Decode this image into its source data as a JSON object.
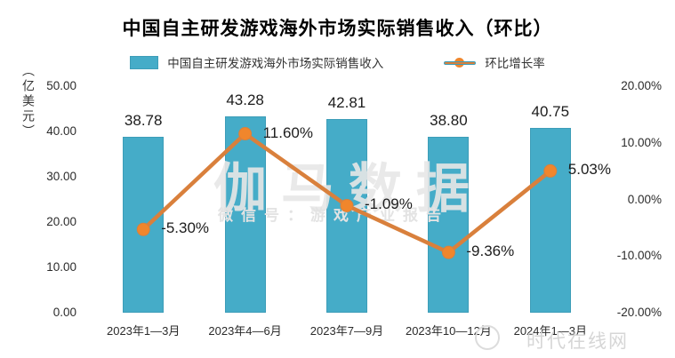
{
  "title": "中国自主研发游戏海外市场实际销售收入（环比）",
  "colors": {
    "bar_fill": "#45ACC8",
    "bar_border": "#3D9DB8",
    "line": "#D9803C",
    "marker": "#F0862C"
  },
  "watermarks": {
    "center_main": "伽马数据",
    "center_sub": "微信号：游戏产业报告",
    "corner": "时代在线网"
  },
  "chart_data": {
    "type": "combo",
    "title": "中国自主研发游戏海外市场实际销售收入（环比）",
    "categories": [
      "2023年1—3月",
      "2023年4—6月",
      "2023年7—9月",
      "2023年10—12月",
      "2024年1—3月"
    ],
    "series": [
      {
        "name": "中国自主研发游戏海外市场实际销售收入",
        "type": "bar",
        "axis": "left",
        "color": "#45ACC8",
        "values": [
          38.78,
          43.28,
          42.81,
          38.8,
          40.75
        ],
        "labels": [
          "38.78",
          "43.28",
          "42.81",
          "38.80",
          "40.75"
        ]
      },
      {
        "name": "环比增长率",
        "type": "line",
        "axis": "right",
        "color": "#D9803C",
        "marker_color": "#F0862C",
        "values": [
          -5.3,
          11.6,
          -1.09,
          -9.36,
          5.03
        ],
        "labels": [
          "-5.30%",
          "11.60%",
          "-1.09%",
          "-9.36%",
          "5.03%"
        ]
      }
    ],
    "left_axis": {
      "title": "（亿美元）",
      "ticks": [
        "50.00",
        "40.00",
        "30.00",
        "20.00",
        "10.00",
        "0.00"
      ],
      "tick_values": [
        50,
        40,
        30,
        20,
        10,
        0
      ],
      "min": 0,
      "max": 50
    },
    "right_axis": {
      "ticks": [
        "20.00%",
        "10.00%",
        "0.00%",
        "-10.00%",
        "-20.00%"
      ],
      "tick_values": [
        20,
        10,
        0,
        -10,
        -20
      ],
      "min": -20,
      "max": 20
    },
    "legend_position": "top",
    "grid": false
  }
}
